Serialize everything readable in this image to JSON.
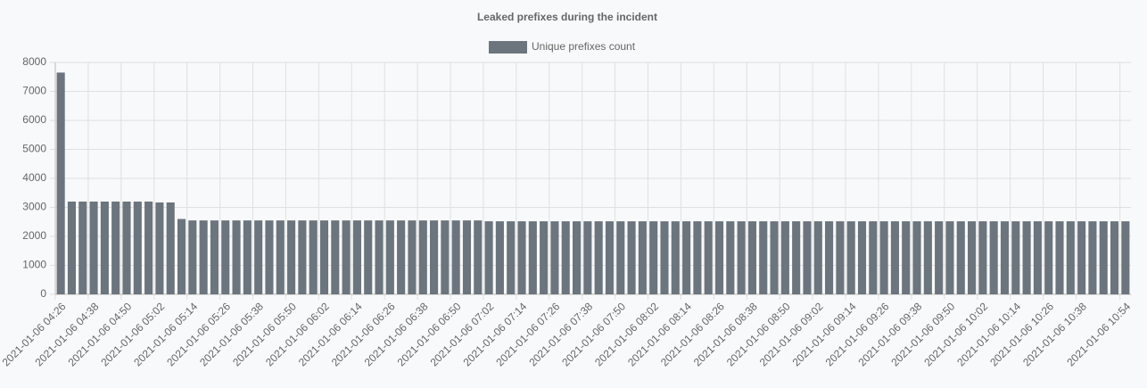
{
  "chart_data": {
    "type": "bar",
    "title": "Leaked prefixes during the incident",
    "series": [
      {
        "name": "Unique prefixes count",
        "color": "#6c757d",
        "values": [
          7650,
          3200,
          3200,
          3200,
          3200,
          3200,
          3200,
          3200,
          3200,
          3170,
          3170,
          2600,
          2550,
          2550,
          2550,
          2550,
          2550,
          2550,
          2550,
          2550,
          2550,
          2550,
          2550,
          2550,
          2550,
          2550,
          2550,
          2550,
          2550,
          2550,
          2550,
          2550,
          2550,
          2550,
          2550,
          2550,
          2550,
          2550,
          2550,
          2520,
          2520,
          2520,
          2520,
          2520,
          2520,
          2520,
          2520,
          2520,
          2520,
          2520,
          2520,
          2520,
          2520,
          2520,
          2520,
          2520,
          2520,
          2520,
          2520,
          2520,
          2520,
          2520,
          2520,
          2520,
          2520,
          2520,
          2520,
          2520,
          2520,
          2520,
          2520,
          2520,
          2520,
          2520,
          2520,
          2520,
          2520,
          2520,
          2520,
          2520,
          2520,
          2520,
          2520,
          2520,
          2520,
          2520,
          2520,
          2520,
          2520,
          2520,
          2520,
          2520,
          2520,
          2520,
          2520,
          2520,
          2520,
          2520
        ]
      }
    ],
    "categories": [
      "2021-01-06 04:26",
      null,
      null,
      "2021-01-06 04:38",
      null,
      null,
      "2021-01-06 04:50",
      null,
      null,
      "2021-01-06 05:02",
      null,
      null,
      "2021-01-06 05:14",
      null,
      null,
      "2021-01-06 05:26",
      null,
      null,
      "2021-01-06 05:38",
      null,
      null,
      "2021-01-06 05:50",
      null,
      null,
      "2021-01-06 06:02",
      null,
      null,
      "2021-01-06 06:14",
      null,
      null,
      "2021-01-06 06:26",
      null,
      null,
      "2021-01-06 06:38",
      null,
      null,
      "2021-01-06 06:50",
      null,
      null,
      "2021-01-06 07:02",
      null,
      null,
      "2021-01-06 07:14",
      null,
      null,
      "2021-01-06 07:26",
      null,
      null,
      "2021-01-06 07:38",
      null,
      null,
      "2021-01-06 07:50",
      null,
      null,
      "2021-01-06 08:02",
      null,
      null,
      "2021-01-06 08:14",
      null,
      null,
      "2021-01-06 08:26",
      null,
      null,
      "2021-01-06 08:38",
      null,
      null,
      "2021-01-06 08:50",
      null,
      null,
      "2021-01-06 09:02",
      null,
      null,
      "2021-01-06 09:14",
      null,
      null,
      "2021-01-06 09:26",
      null,
      null,
      "2021-01-06 09:38",
      null,
      null,
      "2021-01-06 09:50",
      null,
      null,
      "2021-01-06 10:02",
      null,
      null,
      "2021-01-06 10:14",
      null,
      null,
      "2021-01-06 10:26",
      null,
      null,
      "2021-01-06 10:38",
      null,
      null,
      null,
      "2021-01-06 10:54"
    ],
    "ylim": [
      0,
      8000
    ],
    "yticks": [
      0,
      1000,
      2000,
      3000,
      4000,
      5000,
      6000,
      7000,
      8000
    ],
    "grid": true,
    "legend": "top"
  }
}
